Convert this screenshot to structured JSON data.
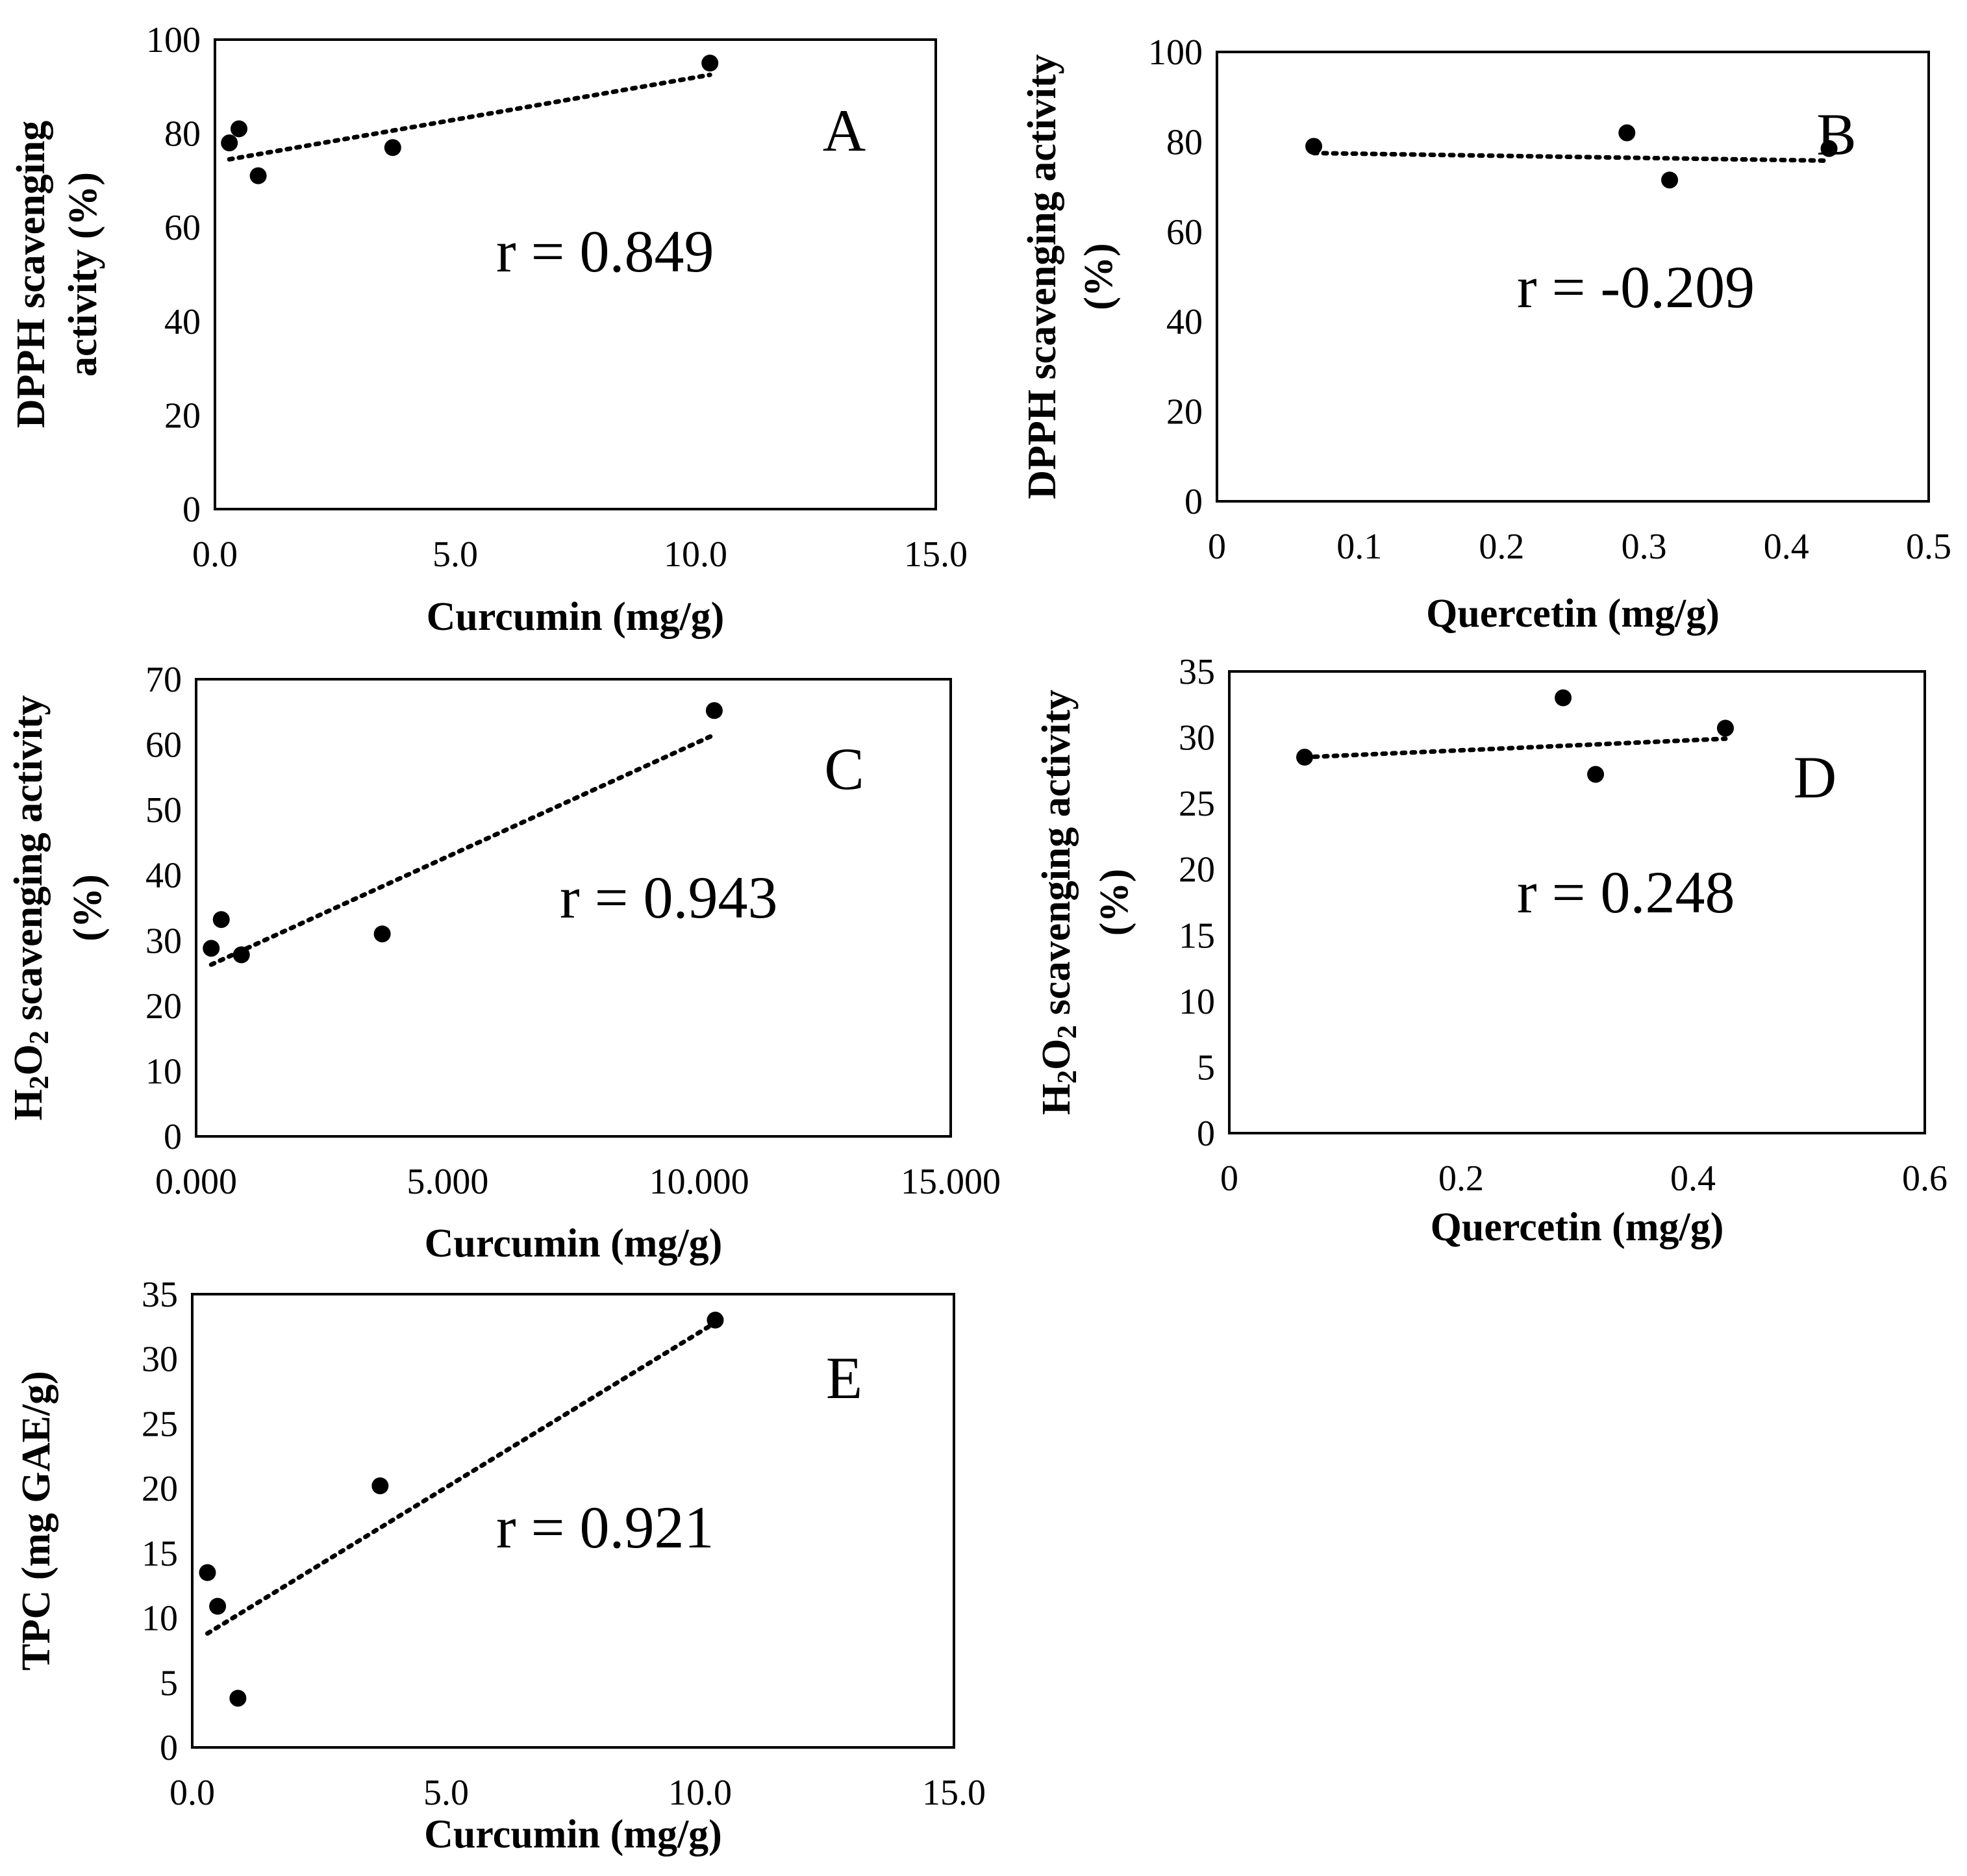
{
  "chart_data": [
    {
      "id": "A",
      "type": "scatter",
      "panel_label": "A",
      "annotation": "r = 0.849",
      "xlabel": "Curcumin (mg/g)",
      "ylabel_lines": [
        "DPPH scavenging",
        "activity (%)"
      ],
      "xlim": [
        0,
        15
      ],
      "ylim": [
        0,
        100
      ],
      "x_ticks": [
        0,
        5,
        10,
        15
      ],
      "x_tick_labels": [
        "0.0",
        "5.0",
        "10.0",
        "15.0"
      ],
      "y_ticks": [
        0,
        20,
        40,
        60,
        80,
        100
      ],
      "y_tick_labels": [
        "0",
        "20",
        "40",
        "60",
        "80",
        "100"
      ],
      "points": [
        [
          0.3,
          78
        ],
        [
          0.5,
          81
        ],
        [
          0.9,
          71
        ],
        [
          3.7,
          77
        ],
        [
          10.3,
          95
        ]
      ],
      "trendline": {
        "x": [
          0.3,
          10.3
        ],
        "y": [
          74.5,
          92.5
        ]
      }
    },
    {
      "id": "B",
      "type": "scatter",
      "panel_label": "B",
      "annotation": "r = -0.209",
      "xlabel": "Quercetin (mg/g)",
      "ylabel_lines": [
        "DPPH scavenging activity",
        "(%)"
      ],
      "xlim": [
        0,
        0.5
      ],
      "ylim": [
        0,
        100
      ],
      "x_ticks": [
        0,
        0.1,
        0.2,
        0.3,
        0.4,
        0.5
      ],
      "x_tick_labels": [
        "0",
        "0.1",
        "0.2",
        "0.3",
        "0.4",
        "0.5"
      ],
      "y_ticks": [
        0,
        20,
        40,
        60,
        80,
        100
      ],
      "y_tick_labels": [
        "0",
        "20",
        "40",
        "60",
        "80",
        "100"
      ],
      "points": [
        [
          0.068,
          79
        ],
        [
          0.288,
          82
        ],
        [
          0.318,
          71.5
        ],
        [
          0.43,
          78.5
        ]
      ],
      "trendline": {
        "x": [
          0.068,
          0.43
        ],
        "y": [
          77.5,
          75.8
        ]
      }
    },
    {
      "id": "C",
      "type": "scatter",
      "panel_label": "C",
      "annotation": "r = 0.943",
      "xlabel": "Curcumin (mg/g)",
      "ylabel_lines": [
        "H2O2 scavenging activity",
        "(%)"
      ],
      "xlim": [
        0,
        15
      ],
      "ylim": [
        0,
        70
      ],
      "x_ticks": [
        0,
        5,
        10,
        15
      ],
      "x_tick_labels": [
        "0.000",
        "5.000",
        "10.000",
        "15.000"
      ],
      "y_ticks": [
        0,
        10,
        20,
        30,
        40,
        50,
        60,
        70
      ],
      "y_tick_labels": [
        "0",
        "10",
        "20",
        "30",
        "40",
        "50",
        "60",
        "70"
      ],
      "points": [
        [
          0.3,
          28.8
        ],
        [
          0.5,
          33.2
        ],
        [
          0.9,
          27.8
        ],
        [
          3.7,
          31
        ],
        [
          10.3,
          65.2
        ]
      ],
      "trendline": {
        "x": [
          0.3,
          10.3
        ],
        "y": [
          26.3,
          61.5
        ]
      }
    },
    {
      "id": "D",
      "type": "scatter",
      "panel_label": "D",
      "annotation": "r = 0.248",
      "xlabel": "Quercetin (mg/g)",
      "ylabel_lines": [
        "H2O2 scavenging activity",
        "(%)"
      ],
      "xlim": [
        0,
        0.6
      ],
      "ylim": [
        0,
        35
      ],
      "x_ticks": [
        0,
        0.2,
        0.4,
        0.6
      ],
      "x_tick_labels": [
        "0",
        "0.2",
        "0.4",
        "0.6"
      ],
      "y_ticks": [
        0,
        5,
        10,
        15,
        20,
        25,
        30,
        35
      ],
      "y_tick_labels": [
        "0",
        "5",
        "10",
        "15",
        "20",
        "25",
        "30",
        "35"
      ],
      "points": [
        [
          0.065,
          28.5
        ],
        [
          0.288,
          33
        ],
        [
          0.316,
          27.2
        ],
        [
          0.428,
          30.7
        ]
      ],
      "trendline": {
        "x": [
          0.065,
          0.428
        ],
        "y": [
          28.5,
          29.9
        ]
      }
    },
    {
      "id": "E",
      "type": "scatter",
      "panel_label": "E",
      "annotation": "r = 0.921",
      "xlabel": "Curcumin (mg/g)",
      "ylabel_lines": [
        "TPC  (mg GAE/g)"
      ],
      "xlim": [
        0,
        15
      ],
      "ylim": [
        0,
        35
      ],
      "x_ticks": [
        0,
        5,
        10,
        15
      ],
      "x_tick_labels": [
        "0.0",
        "5.0",
        "10.0",
        "15.0"
      ],
      "y_ticks": [
        0,
        5,
        10,
        15,
        20,
        25,
        30,
        35
      ],
      "y_tick_labels": [
        "0",
        "5",
        "10",
        "15",
        "20",
        "25",
        "30",
        "35"
      ],
      "points": [
        [
          0.3,
          13.5
        ],
        [
          0.5,
          10.9
        ],
        [
          0.9,
          3.8
        ],
        [
          3.7,
          20.2
        ],
        [
          10.3,
          33
        ]
      ],
      "trendline": {
        "x": [
          0.3,
          10.3
        ],
        "y": [
          8.8,
          32.8
        ]
      }
    }
  ]
}
